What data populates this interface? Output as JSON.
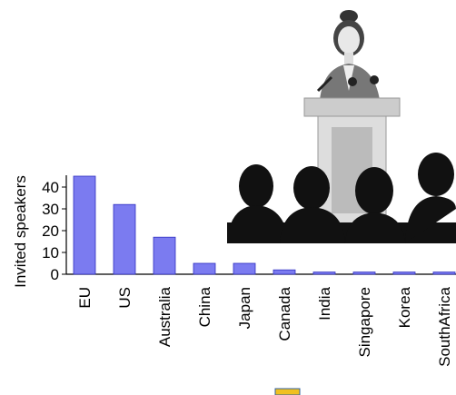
{
  "chart_data": {
    "type": "bar",
    "y_label": "Invited speakers",
    "categories": [
      "EU",
      "US",
      "Australia",
      "China",
      "Japan",
      "Canada",
      "India",
      "Singapore",
      "Korea",
      "SouthAfrica"
    ],
    "values": [
      45,
      32,
      17,
      5,
      5,
      2,
      1,
      1,
      1,
      1
    ],
    "color": "#7b7bf0",
    "ylim": [
      0,
      46
    ],
    "yticks": [
      0,
      10,
      20,
      30,
      40
    ],
    "grid": false
  }
}
